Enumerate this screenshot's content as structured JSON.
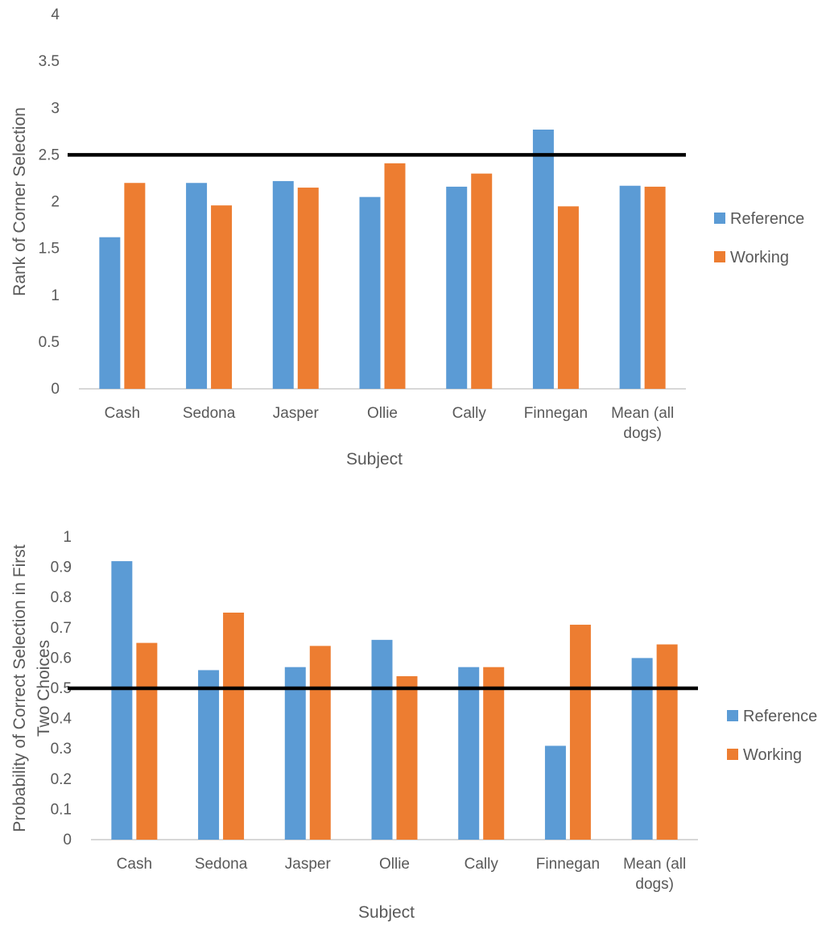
{
  "chart_data": [
    {
      "type": "bar",
      "categories": [
        "Cash",
        "Sedona",
        "Jasper",
        "Ollie",
        "Cally",
        "Finnegan",
        "Mean (all dogs)"
      ],
      "series": [
        {
          "name": "Reference",
          "values": [
            1.62,
            2.2,
            2.22,
            2.05,
            2.16,
            2.77,
            2.17
          ]
        },
        {
          "name": "Working",
          "values": [
            2.2,
            1.96,
            2.15,
            2.41,
            2.3,
            1.95,
            2.16
          ]
        }
      ],
      "xlabel": "Subject",
      "ylabel": "Rank of Corner Selection",
      "ylim": [
        0,
        4
      ],
      "ytick_step": 0.5,
      "yticks": [
        "0",
        "0.5",
        "1",
        "1.5",
        "2",
        "2.5",
        "3",
        "3.5",
        "4"
      ],
      "reference_line": 2.5,
      "grid": false,
      "legend": "right"
    },
    {
      "type": "bar",
      "categories": [
        "Cash",
        "Sedona",
        "Jasper",
        "Ollie",
        "Cally",
        "Finnegan",
        "Mean (all dogs)"
      ],
      "series": [
        {
          "name": "Reference",
          "values": [
            0.92,
            0.56,
            0.57,
            0.66,
            0.57,
            0.31,
            0.6
          ]
        },
        {
          "name": "Working",
          "values": [
            0.65,
            0.75,
            0.64,
            0.54,
            0.57,
            0.71,
            0.645
          ]
        }
      ],
      "xlabel": "Subject",
      "ylabel": "Probability of Correct Selection in First Two Choices",
      "ylim": [
        0,
        1
      ],
      "ytick_step": 0.1,
      "yticks": [
        "0",
        "0.1",
        "0.2",
        "0.3",
        "0.4",
        "0.5",
        "0.6",
        "0.7",
        "0.8",
        "0.9",
        "1"
      ],
      "reference_line": 0.5,
      "grid": false,
      "legend": "right"
    }
  ],
  "colors": {
    "Reference": "#5B9BD5",
    "Working": "#ED7D31",
    "reference_line": "#000000",
    "axis": "#BFBFBF",
    "text": "#595959"
  }
}
